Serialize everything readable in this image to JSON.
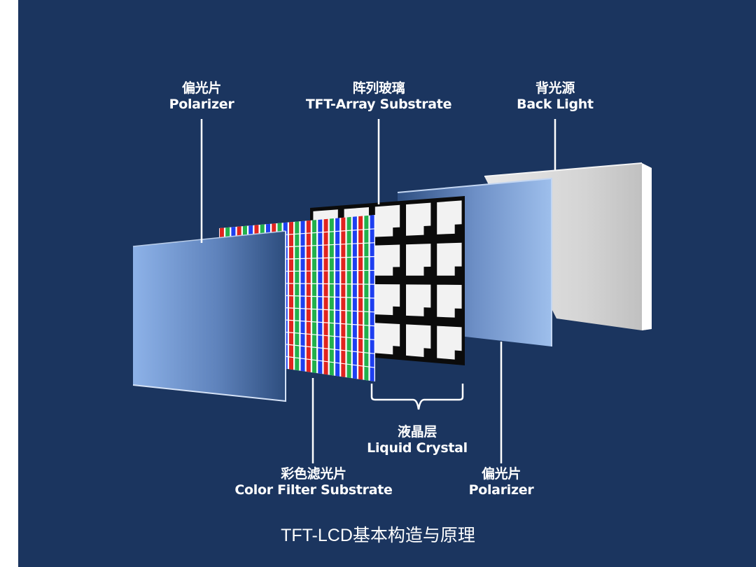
{
  "labels": {
    "polarizer_front": {
      "cn": "偏光片",
      "en": "Polarizer"
    },
    "tft_array": {
      "cn": "阵列玻璃",
      "en": "TFT-Array Substrate"
    },
    "back_light": {
      "cn": "背光源",
      "en": "Back Light"
    },
    "liquid_crystal": {
      "cn": "液晶层",
      "en": "Liquid Crystal"
    },
    "color_filter": {
      "cn": "彩色滤光片",
      "en": "Color Filter Substrate"
    },
    "polarizer_rear": {
      "cn": "偏光片",
      "en": "Polarizer"
    }
  },
  "caption": "TFT-LCD基本构造与原理",
  "colors": {
    "background": "#1b355f",
    "stripe_red": "#e0241f",
    "stripe_green": "#22b14c",
    "stripe_blue": "#1e3ff0"
  }
}
